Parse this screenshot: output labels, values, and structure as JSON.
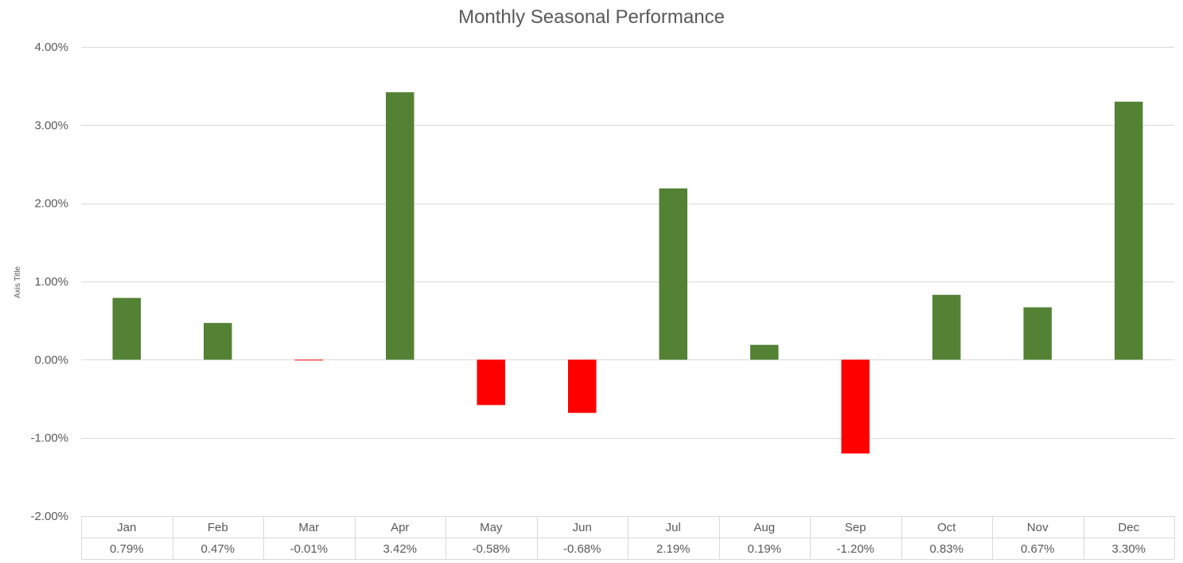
{
  "chart_data": {
    "type": "bar",
    "title": "Monthly Seasonal Performance",
    "xlabel": "",
    "ylabel": "Axis Title",
    "ylim": [
      -2.0,
      4.0
    ],
    "ytick_values": [
      4.0,
      3.0,
      2.0,
      1.0,
      0.0,
      -1.0,
      -2.0
    ],
    "yticks": [
      "4.00%",
      "3.00%",
      "2.00%",
      "1.00%",
      "0.00%",
      "-1.00%",
      "-2.00%"
    ],
    "grid": true,
    "legend": "none",
    "categories": [
      "Jan",
      "Feb",
      "Mar",
      "Apr",
      "May",
      "Jun",
      "Jul",
      "Aug",
      "Sep",
      "Oct",
      "Nov",
      "Dec"
    ],
    "values": [
      0.79,
      0.47,
      -0.01,
      3.42,
      -0.58,
      -0.68,
      2.19,
      0.19,
      -1.2,
      0.83,
      0.67,
      3.3
    ],
    "value_labels": [
      "0.79%",
      "0.47%",
      "-0.01%",
      "3.42%",
      "-0.58%",
      "-0.68%",
      "2.19%",
      "0.19%",
      "-1.20%",
      "0.83%",
      "0.67%",
      "3.30%"
    ],
    "data_table": true,
    "colors": {
      "positive": "#548235",
      "negative": "#ff0000",
      "gridline": "#d9d9d9",
      "text": "#595959",
      "table_border": "#d9d9d9"
    }
  }
}
